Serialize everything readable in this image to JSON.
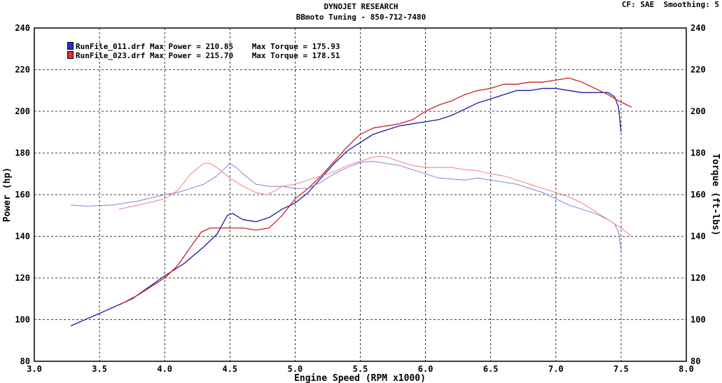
{
  "header": {
    "title": "DYNOJET RESEARCH",
    "subtitle": "BBmoto Tuning - 850-712-7480",
    "cf_info": "CF: SAE  Smoothing: 5"
  },
  "legend": [
    {
      "file": "RunFile_011.drf",
      "power_label": "Max Power = 210.85",
      "torque_label": "Max Torque = 175.93",
      "color": "#1a1aa6"
    },
    {
      "file": "RunFile_023.drf",
      "power_label": "Max Power = 215.70",
      "torque_label": "Max Torque = 178.51",
      "color": "#cc2222"
    }
  ],
  "chart_data": {
    "type": "line",
    "xlabel": "Engine Speed (RPM x1000)",
    "ylabel_left": "Power (hp)",
    "ylabel_right": "Torque (ft-lbs)",
    "xlim": [
      3.0,
      8.0
    ],
    "ylim": [
      80,
      240
    ],
    "xticks": [
      "3.0",
      "3.5",
      "4.0",
      "4.5",
      "5.0",
      "5.5",
      "6.0",
      "6.5",
      "7.0",
      "7.5",
      "8.0"
    ],
    "yticks": [
      "80",
      "100",
      "120",
      "140",
      "160",
      "180",
      "200",
      "220",
      "240"
    ],
    "grid": true,
    "series": [
      {
        "name": "RunFile_011.drf Power",
        "color": "#1a1aa6",
        "width": 1.3,
        "points": [
          [
            3.28,
            97
          ],
          [
            3.5,
            103
          ],
          [
            3.75,
            110
          ],
          [
            4.0,
            121
          ],
          [
            4.15,
            127
          ],
          [
            4.3,
            135
          ],
          [
            4.4,
            141
          ],
          [
            4.48,
            150
          ],
          [
            4.52,
            151
          ],
          [
            4.6,
            148
          ],
          [
            4.7,
            147
          ],
          [
            4.8,
            149
          ],
          [
            4.9,
            153
          ],
          [
            5.0,
            156
          ],
          [
            5.1,
            161
          ],
          [
            5.2,
            168
          ],
          [
            5.3,
            175
          ],
          [
            5.4,
            181
          ],
          [
            5.5,
            185
          ],
          [
            5.6,
            189
          ],
          [
            5.7,
            191
          ],
          [
            5.8,
            193
          ],
          [
            5.9,
            194
          ],
          [
            6.0,
            195
          ],
          [
            6.1,
            196
          ],
          [
            6.2,
            198
          ],
          [
            6.3,
            201
          ],
          [
            6.4,
            204
          ],
          [
            6.5,
            206
          ],
          [
            6.6,
            208
          ],
          [
            6.7,
            210
          ],
          [
            6.8,
            210
          ],
          [
            6.9,
            211
          ],
          [
            7.0,
            211
          ],
          [
            7.1,
            210
          ],
          [
            7.2,
            209
          ],
          [
            7.3,
            209
          ],
          [
            7.4,
            209
          ],
          [
            7.45,
            207
          ],
          [
            7.48,
            202
          ],
          [
            7.5,
            190
          ]
        ]
      },
      {
        "name": "RunFile_023.drf Power",
        "color": "#cc2222",
        "width": 1.3,
        "points": [
          [
            3.65,
            107
          ],
          [
            3.8,
            112
          ],
          [
            4.0,
            120
          ],
          [
            4.1,
            126
          ],
          [
            4.2,
            135
          ],
          [
            4.28,
            142
          ],
          [
            4.35,
            144
          ],
          [
            4.45,
            144
          ],
          [
            4.6,
            144
          ],
          [
            4.7,
            143
          ],
          [
            4.8,
            144
          ],
          [
            4.9,
            150
          ],
          [
            5.0,
            158
          ],
          [
            5.1,
            163
          ],
          [
            5.2,
            169
          ],
          [
            5.3,
            176
          ],
          [
            5.4,
            183
          ],
          [
            5.5,
            189
          ],
          [
            5.6,
            192
          ],
          [
            5.7,
            193
          ],
          [
            5.8,
            194
          ],
          [
            5.9,
            196
          ],
          [
            6.0,
            200
          ],
          [
            6.1,
            203
          ],
          [
            6.2,
            205
          ],
          [
            6.3,
            208
          ],
          [
            6.4,
            210
          ],
          [
            6.5,
            211
          ],
          [
            6.6,
            213
          ],
          [
            6.7,
            213
          ],
          [
            6.8,
            214
          ],
          [
            6.9,
            214
          ],
          [
            7.0,
            215
          ],
          [
            7.1,
            216
          ],
          [
            7.15,
            215
          ],
          [
            7.2,
            214
          ],
          [
            7.3,
            211
          ],
          [
            7.4,
            208
          ],
          [
            7.48,
            205
          ],
          [
            7.55,
            203
          ],
          [
            7.58,
            202
          ]
        ]
      },
      {
        "name": "RunFile_011.drf Torque",
        "color": "#8080e0",
        "width": 1.0,
        "points": [
          [
            3.28,
            155
          ],
          [
            3.4,
            154.5
          ],
          [
            3.6,
            155
          ],
          [
            3.8,
            157
          ],
          [
            4.0,
            160
          ],
          [
            4.1,
            161
          ],
          [
            4.2,
            163
          ],
          [
            4.3,
            165
          ],
          [
            4.4,
            169
          ],
          [
            4.5,
            175
          ],
          [
            4.55,
            173
          ],
          [
            4.6,
            170
          ],
          [
            4.7,
            165
          ],
          [
            4.8,
            164
          ],
          [
            4.9,
            164
          ],
          [
            5.0,
            163
          ],
          [
            5.1,
            163
          ],
          [
            5.2,
            166
          ],
          [
            5.3,
            170
          ],
          [
            5.4,
            173
          ],
          [
            5.5,
            175.5
          ],
          [
            5.6,
            176
          ],
          [
            5.7,
            175
          ],
          [
            5.8,
            174
          ],
          [
            5.9,
            172
          ],
          [
            6.0,
            170
          ],
          [
            6.1,
            168
          ],
          [
            6.2,
            167.5
          ],
          [
            6.3,
            167
          ],
          [
            6.4,
            168
          ],
          [
            6.5,
            167
          ],
          [
            6.6,
            166
          ],
          [
            6.7,
            165
          ],
          [
            6.8,
            163
          ],
          [
            6.9,
            161
          ],
          [
            7.0,
            158
          ],
          [
            7.1,
            155
          ],
          [
            7.2,
            153
          ],
          [
            7.3,
            151
          ],
          [
            7.4,
            148
          ],
          [
            7.45,
            146
          ],
          [
            7.48,
            142
          ],
          [
            7.5,
            133
          ]
        ]
      },
      {
        "name": "RunFile_023.drf Torque",
        "color": "#f08080",
        "width": 1.0,
        "points": [
          [
            3.65,
            153
          ],
          [
            3.8,
            155
          ],
          [
            4.0,
            158
          ],
          [
            4.1,
            162
          ],
          [
            4.2,
            170
          ],
          [
            4.3,
            175
          ],
          [
            4.35,
            175
          ],
          [
            4.4,
            173
          ],
          [
            4.5,
            168
          ],
          [
            4.6,
            164
          ],
          [
            4.7,
            161
          ],
          [
            4.78,
            160
          ],
          [
            4.85,
            162
          ],
          [
            4.9,
            164
          ],
          [
            5.0,
            165
          ],
          [
            5.1,
            167
          ],
          [
            5.2,
            169
          ],
          [
            5.3,
            171
          ],
          [
            5.4,
            174
          ],
          [
            5.5,
            176
          ],
          [
            5.6,
            178
          ],
          [
            5.65,
            178.5
          ],
          [
            5.7,
            178
          ],
          [
            5.8,
            176
          ],
          [
            5.9,
            174
          ],
          [
            6.0,
            173
          ],
          [
            6.1,
            173
          ],
          [
            6.2,
            173
          ],
          [
            6.3,
            172
          ],
          [
            6.4,
            171.5
          ],
          [
            6.5,
            170
          ],
          [
            6.6,
            169
          ],
          [
            6.7,
            167
          ],
          [
            6.8,
            165
          ],
          [
            6.9,
            163
          ],
          [
            7.0,
            161
          ],
          [
            7.1,
            159
          ],
          [
            7.2,
            156
          ],
          [
            7.3,
            152
          ],
          [
            7.4,
            148
          ],
          [
            7.5,
            144
          ],
          [
            7.58,
            140
          ]
        ]
      }
    ]
  }
}
